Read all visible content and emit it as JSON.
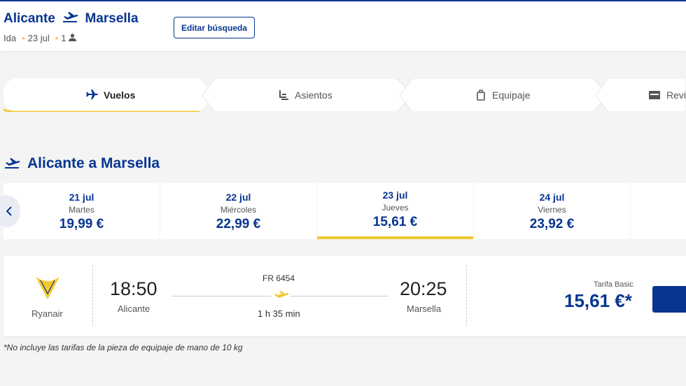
{
  "header": {
    "origin": "Alicante",
    "destination": "Marsella",
    "trip_type": "Ida",
    "date": "23 jul",
    "passengers": "1",
    "edit_button": "Editar búsqueda"
  },
  "steps": [
    "Vuelos",
    "Asientos",
    "Equipaje",
    "Revis"
  ],
  "section_title": "Alicante a Marsella",
  "dates": [
    {
      "date": "21 jul",
      "day": "Martes",
      "price": "19,99 €"
    },
    {
      "date": "22 jul",
      "day": "Miércoles",
      "price": "22,99 €"
    },
    {
      "date": "23 jul",
      "day": "Jueves",
      "price": "15,61 €"
    },
    {
      "date": "24 jul",
      "day": "Viernes",
      "price": "23,92 €"
    }
  ],
  "flight": {
    "airline": "Ryanair",
    "departure_time": "18:50",
    "departure_city": "Alicante",
    "flight_number": "FR 6454",
    "duration": "1 h 35 min",
    "arrival_time": "20:25",
    "arrival_city": "Marsella",
    "fare_name": "Tarifa Basic",
    "fare_price": "15,61 €*"
  },
  "footnote": "*No incluye las tarifas de la pieza de equipaje de mano de 10 kg"
}
